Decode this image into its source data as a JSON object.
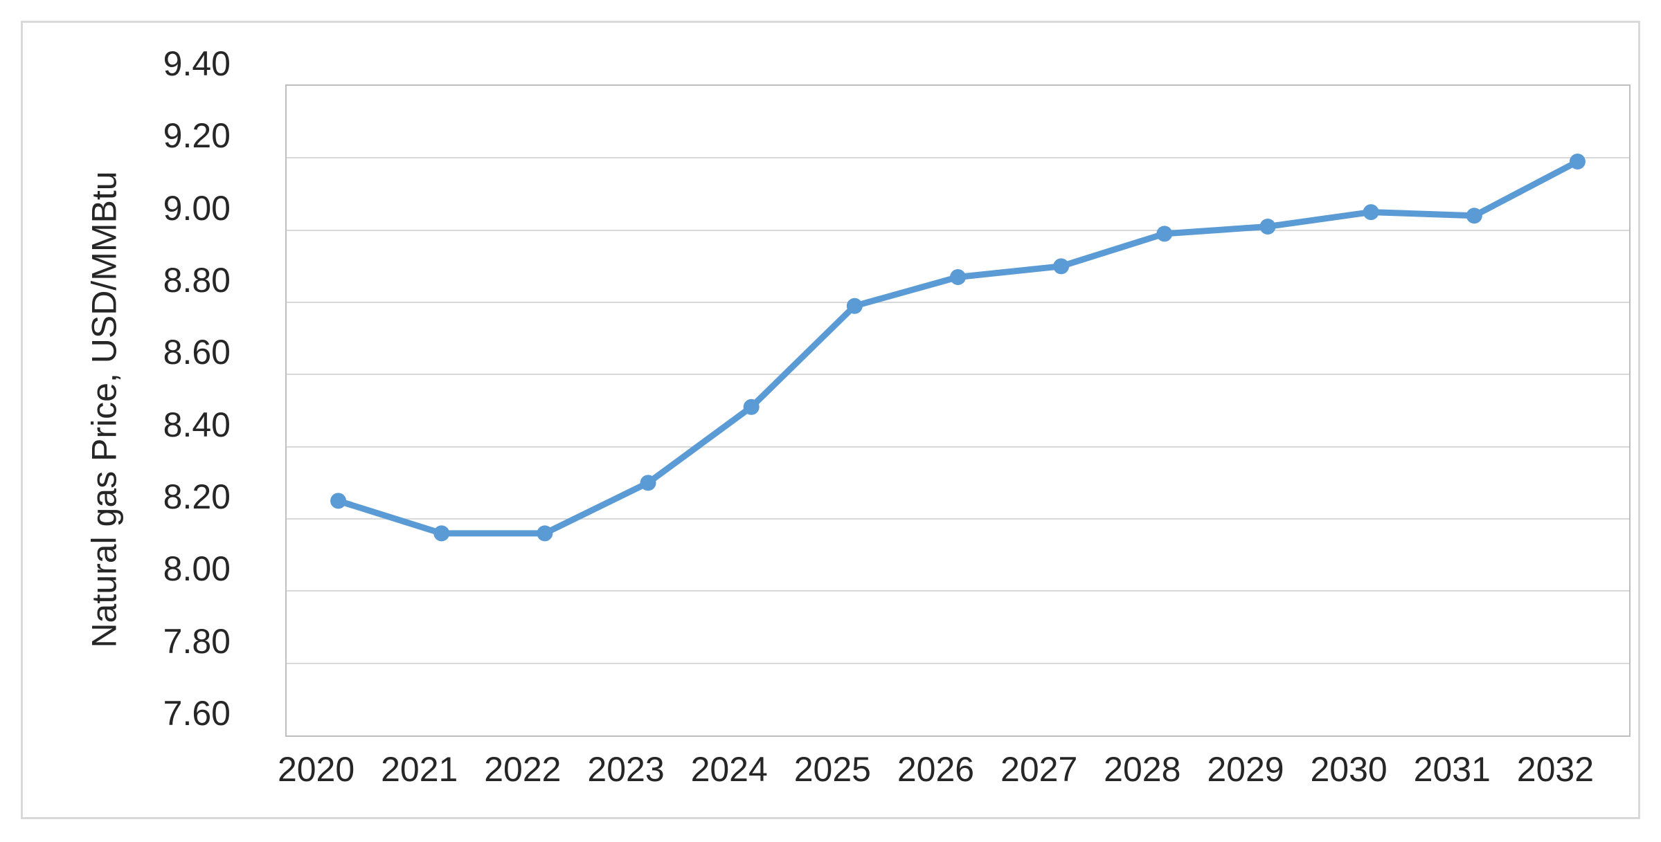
{
  "chart_data": {
    "type": "line",
    "title": "",
    "categories": [
      "2020",
      "2021",
      "2022",
      "2023",
      "2024",
      "2025",
      "2026",
      "2027",
      "2028",
      "2029",
      "2030",
      "2031",
      "2032"
    ],
    "series": [
      {
        "name": "Natural gas price",
        "values": [
          8.25,
          8.16,
          8.16,
          8.3,
          8.51,
          8.79,
          8.87,
          8.9,
          8.99,
          9.01,
          9.05,
          9.04,
          9.19
        ]
      }
    ],
    "xlabel": "",
    "ylabel": "Natural gas Price, USD/MMBtu",
    "ylim": [
      7.6,
      9.4
    ],
    "ytick_step": 0.2,
    "ytick_labels": [
      "9.40",
      "9.20",
      "9.00",
      "8.80",
      "8.60",
      "8.40",
      "8.20",
      "8.00",
      "7.80",
      "7.60"
    ],
    "grid": true,
    "legend_position": "none",
    "marker": "circle"
  },
  "colors": {
    "line": "#5b9bd5",
    "marker": "#5b9bd5",
    "gridline": "#d9d9d9",
    "plot_border": "#bfbfbf",
    "frame_border": "#d9d9d9",
    "text": "#262626",
    "background": "#ffffff"
  }
}
